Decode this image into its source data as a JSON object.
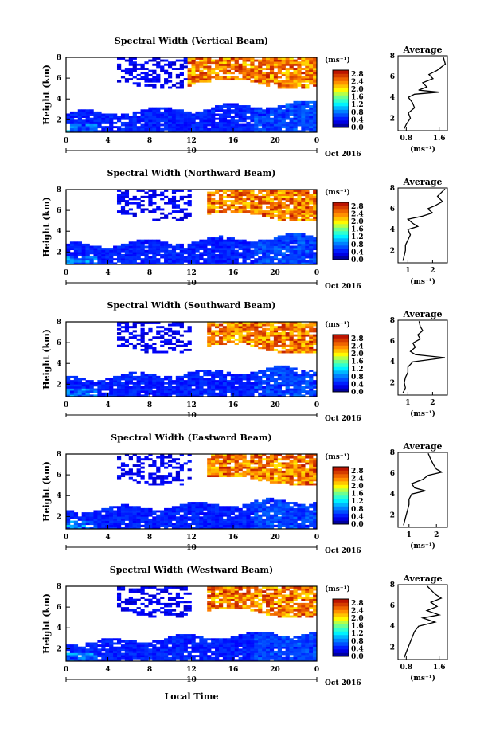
{
  "figure": {
    "x_axis_label": "Local Time",
    "y_axis_label": "Height (km)",
    "date_label": "Oct 2016",
    "day_label": "10",
    "colorbar_unit": "(ms⁻¹)",
    "average_title": "Average",
    "average_xlabel": "(ms⁻¹)"
  },
  "chart_data": [
    {
      "type": "heatmap",
      "title": "Spectral Width (Vertical Beam)",
      "xlabel": "",
      "ylabel": "Height (km)",
      "x_ticks": [
        "0",
        "4",
        "8",
        "12",
        "16",
        "20",
        "0"
      ],
      "y_ticks": [
        "2",
        "4",
        "6",
        "8"
      ],
      "xlim": [
        0,
        24
      ],
      "ylim": [
        0.8,
        8
      ],
      "colorbar": {
        "ticks": [
          "0.0",
          "0.4",
          "0.8",
          "1.2",
          "1.6",
          "2.0",
          "2.4",
          "2.8"
        ],
        "range": [
          0,
          3.0
        ]
      },
      "average": {
        "title": "Average",
        "x_ticks": [
          "0.8",
          "1.6"
        ],
        "xlim": [
          0.6,
          1.8
        ],
        "x": [
          0.75,
          0.8,
          0.9,
          0.85,
          1.0,
          0.95,
          0.85,
          1.0,
          1.6,
          1.1,
          1.3,
          1.2,
          1.45,
          1.35,
          1.55,
          1.75,
          1.7
        ],
        "y": [
          1.0,
          1.4,
          2.0,
          2.5,
          3.0,
          3.5,
          4.0,
          4.3,
          4.5,
          4.7,
          5.0,
          5.4,
          5.8,
          6.2,
          6.6,
          7.2,
          7.9
        ]
      }
    },
    {
      "type": "heatmap",
      "title": "Spectral Width (Northward Beam)",
      "xlabel": "",
      "ylabel": "Height (km)",
      "x_ticks": [
        "0",
        "4",
        "8",
        "12",
        "16",
        "20",
        "0"
      ],
      "y_ticks": [
        "2",
        "4",
        "6",
        "8"
      ],
      "xlim": [
        0,
        24
      ],
      "ylim": [
        0.8,
        8
      ],
      "colorbar": {
        "ticks": [
          "0.0",
          "0.4",
          "0.8",
          "1.2",
          "1.6",
          "2.0",
          "2.4",
          "2.8"
        ],
        "range": [
          0,
          3.0
        ]
      },
      "average": {
        "title": "Average",
        "x_ticks": [
          "1",
          "2"
        ],
        "xlim": [
          0.6,
          2.6
        ],
        "x": [
          0.8,
          0.85,
          0.9,
          0.9,
          1.0,
          1.1,
          1.0,
          1.4,
          1.2,
          1.0,
          1.6,
          2.0,
          1.8,
          2.1,
          2.4,
          2.2,
          2.5
        ],
        "y": [
          1.0,
          1.5,
          2.0,
          2.5,
          3.0,
          3.5,
          4.0,
          4.3,
          4.6,
          5.0,
          5.3,
          5.6,
          6.0,
          6.3,
          6.7,
          7.2,
          7.9
        ]
      }
    },
    {
      "type": "heatmap",
      "title": "Spectral Width (Southward Beam)",
      "xlabel": "",
      "ylabel": "Height (km)",
      "x_ticks": [
        "0",
        "4",
        "8",
        "12",
        "16",
        "20",
        "0"
      ],
      "y_ticks": [
        "2",
        "4",
        "6",
        "8"
      ],
      "xlim": [
        0,
        24
      ],
      "ylim": [
        0.8,
        8
      ],
      "colorbar": {
        "ticks": [
          "0.0",
          "0.4",
          "0.8",
          "1.2",
          "1.6",
          "2.0",
          "2.4",
          "2.8"
        ],
        "range": [
          0,
          3.0
        ]
      },
      "average": {
        "title": "Average",
        "x_ticks": [
          "1",
          "2"
        ],
        "xlim": [
          0.6,
          2.6
        ],
        "x": [
          0.8,
          0.9,
          0.85,
          0.9,
          1.0,
          1.0,
          1.2,
          2.5,
          1.3,
          1.1,
          1.3,
          1.2,
          1.5,
          1.4,
          1.6,
          1.5,
          1.45
        ],
        "y": [
          1.0,
          1.5,
          2.0,
          2.5,
          3.0,
          3.5,
          4.0,
          4.4,
          4.7,
          5.0,
          5.4,
          5.8,
          6.2,
          6.6,
          7.0,
          7.4,
          7.9
        ]
      }
    },
    {
      "type": "heatmap",
      "title": "Spectral Width (Eastward Beam)",
      "xlabel": "",
      "ylabel": "Height (km)",
      "x_ticks": [
        "0",
        "4",
        "8",
        "12",
        "16",
        "20",
        "0"
      ],
      "y_ticks": [
        "2",
        "4",
        "6",
        "8"
      ],
      "xlim": [
        0,
        24
      ],
      "ylim": [
        0.8,
        8
      ],
      "colorbar": {
        "ticks": [
          "0.0",
          "0.4",
          "0.8",
          "1.2",
          "1.6",
          "2.0",
          "2.4",
          "2.8"
        ],
        "range": [
          0,
          3.0
        ]
      },
      "average": {
        "title": "Average",
        "x_ticks": [
          "1",
          "2"
        ],
        "xlim": [
          0.6,
          2.4
        ],
        "x": [
          0.8,
          0.85,
          0.9,
          0.95,
          1.0,
          1.0,
          1.1,
          1.6,
          1.2,
          1.1,
          1.5,
          1.7,
          2.2,
          2.0,
          1.9,
          1.8,
          1.7
        ],
        "y": [
          1.0,
          1.5,
          2.0,
          2.5,
          3.0,
          3.5,
          4.0,
          4.3,
          4.6,
          5.0,
          5.4,
          5.8,
          6.1,
          6.4,
          6.8,
          7.3,
          7.9
        ]
      }
    },
    {
      "type": "heatmap",
      "title": "Spectral Width (Westward Beam)",
      "xlabel": "Local Time",
      "ylabel": "Height (km)",
      "x_ticks": [
        "0",
        "4",
        "8",
        "12",
        "16",
        "20",
        "0"
      ],
      "y_ticks": [
        "2",
        "4",
        "6",
        "8"
      ],
      "xlim": [
        0,
        24
      ],
      "ylim": [
        0.8,
        8
      ],
      "colorbar": {
        "ticks": [
          "0.0",
          "0.4",
          "0.8",
          "1.2",
          "1.6",
          "2.0",
          "2.4",
          "2.8"
        ],
        "range": [
          0,
          3.0
        ]
      },
      "average": {
        "title": "Average",
        "x_ticks": [
          "0.8",
          "1.6"
        ],
        "xlim": [
          0.6,
          1.8
        ],
        "x": [
          0.75,
          0.8,
          0.85,
          0.9,
          0.95,
          1.0,
          1.1,
          1.5,
          1.2,
          1.6,
          1.3,
          1.55,
          1.4,
          1.65,
          1.5,
          1.4,
          1.3
        ],
        "y": [
          1.0,
          1.5,
          2.0,
          2.5,
          3.0,
          3.5,
          4.0,
          4.4,
          4.8,
          5.1,
          5.5,
          5.9,
          6.3,
          6.7,
          7.1,
          7.5,
          7.9
        ]
      }
    }
  ]
}
